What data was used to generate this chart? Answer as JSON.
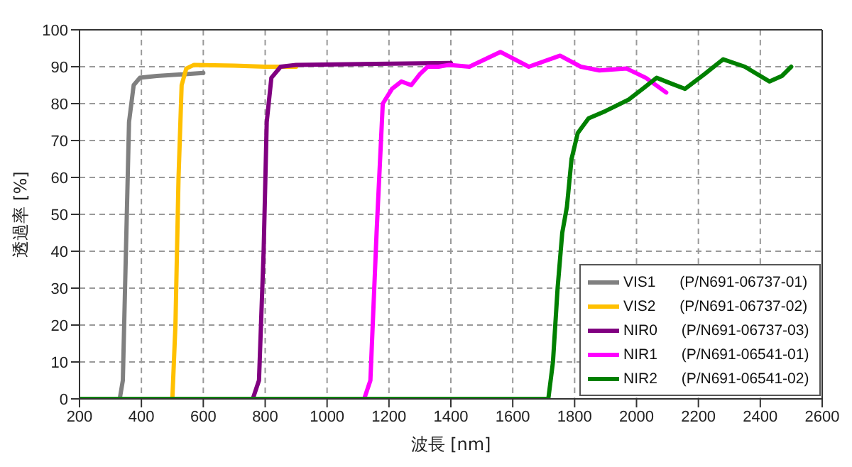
{
  "chart_data": {
    "type": "line",
    "xlabel": "波長 [nm]",
    "ylabel": "透過率 [%]",
    "xlim": [
      200,
      2600
    ],
    "xticks": [
      200,
      400,
      600,
      800,
      1000,
      1200,
      1400,
      1600,
      1800,
      2000,
      2200,
      2400,
      2600
    ],
    "ylim": [
      0,
      100
    ],
    "yticks": [
      0,
      10,
      20,
      30,
      40,
      50,
      60,
      70,
      80,
      90,
      100
    ],
    "grid": true,
    "legend": "bottom right",
    "marker": "none",
    "line_style": "solid",
    "series": [
      {
        "name": "VIS1 (P/N691-06737-01)",
        "color": "#808080",
        "x": [
          200,
          330,
          340,
          350,
          360,
          375,
          395,
          450,
          600
        ],
        "values": [
          0,
          0,
          5,
          40,
          75,
          85,
          87,
          87.5,
          88.3
        ]
      },
      {
        "name": "VIS2 (P/N691-06737-02)",
        "color": "#ffc000",
        "x": [
          200,
          500,
          510,
          520,
          530,
          545,
          570,
          700,
          800,
          900
        ],
        "values": [
          0,
          0,
          20,
          60,
          85,
          89.5,
          90.5,
          90.3,
          90,
          90
        ]
      },
      {
        "name": "NIR0 (P/N691-06737-03)",
        "color": "#800080",
        "x": [
          200,
          760,
          780,
          795,
          805,
          820,
          850,
          900,
          1400
        ],
        "values": [
          0,
          0,
          5,
          40,
          75,
          87,
          90,
          90.5,
          91
        ]
      },
      {
        "name": "NIR1 (P/N691-06541-01)",
        "color": "#ff00ff",
        "x": [
          200,
          1120,
          1140,
          1160,
          1180,
          1210,
          1240,
          1272,
          1300,
          1325,
          1360,
          1395,
          1460,
          1560,
          1652,
          1753,
          1820,
          1880,
          1968,
          2030,
          2096
        ],
        "values": [
          0,
          0,
          5,
          45,
          80,
          84,
          86,
          85,
          88,
          90,
          90,
          90.5,
          90,
          94,
          90,
          93,
          90,
          89,
          89.5,
          87,
          83
        ]
      },
      {
        "name": "NIR2 (P/N691-06541-02)",
        "color": "#008000",
        "x": [
          200,
          1715,
          1730,
          1745,
          1760,
          1775,
          1790,
          1810,
          1845,
          1900,
          1973,
          2020,
          2065,
          2110,
          2157,
          2220,
          2280,
          2350,
          2430,
          2470,
          2500
        ],
        "values": [
          0,
          0,
          10,
          30,
          45,
          52,
          65,
          72,
          76,
          78,
          81,
          84,
          87,
          85.5,
          84,
          88,
          92,
          90,
          86,
          87.5,
          90
        ]
      }
    ]
  }
}
